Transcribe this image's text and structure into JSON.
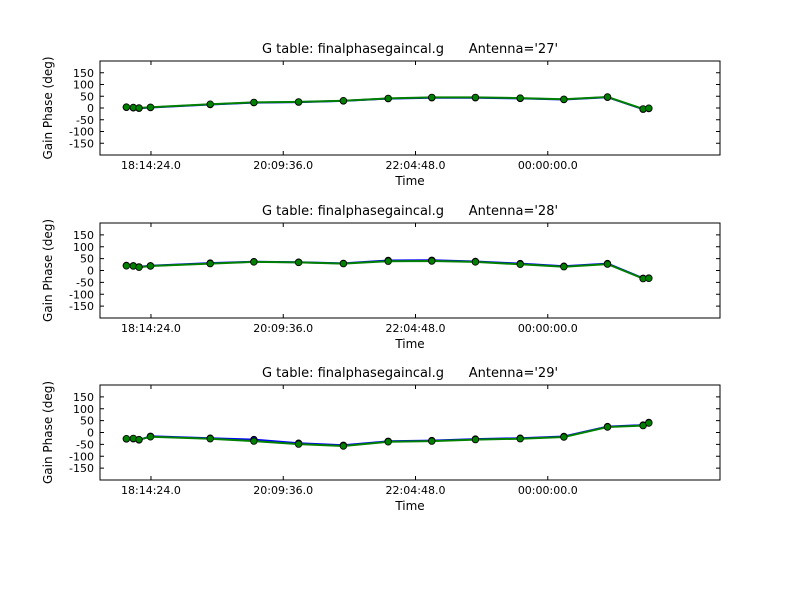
{
  "chart_data": [
    {
      "type": "line",
      "title": "G table: finalphasegaincal.g      Antenna='27'",
      "xlabel": "Time",
      "ylabel": "Gain Phase (deg)",
      "xlim": [
        "17:30:00",
        "02:30:00"
      ],
      "ylim": [
        -200,
        200
      ],
      "yticks": [
        -150,
        -100,
        -50,
        0,
        50,
        100,
        150
      ],
      "xticks": [
        "18:14:24.0",
        "20:09:36.0",
        "22:04:48.0",
        "00:00:00.0"
      ],
      "grid": false,
      "series": [
        {
          "color": "#0000ff",
          "x": [
            "17:53:00",
            "17:59:00",
            "18:04:00",
            "18:14:00",
            "19:06:00",
            "19:44:00",
            "20:23:00",
            "21:02:00",
            "21:41:00",
            "22:19:00",
            "22:57:00",
            "23:36:00",
            "00:14:00",
            "00:52:00",
            "01:23:00",
            "01:28:00"
          ],
          "y": [
            3,
            1,
            -1,
            2,
            15,
            23,
            25,
            30,
            40,
            44,
            44,
            41,
            36,
            46,
            -5,
            -2
          ]
        },
        {
          "color": "#008000",
          "x": [
            "17:53:00",
            "17:59:00",
            "18:04:00",
            "18:14:00",
            "19:06:00",
            "19:44:00",
            "20:23:00",
            "21:02:00",
            "21:41:00",
            "22:19:00",
            "22:57:00",
            "23:36:00",
            "00:14:00",
            "00:52:00",
            "01:23:00",
            "01:28:00"
          ],
          "y": [
            4,
            2,
            0,
            3,
            16,
            24,
            26,
            31,
            41,
            45,
            45,
            42,
            37,
            47,
            -4,
            -1
          ]
        }
      ]
    },
    {
      "type": "line",
      "title": "G table: finalphasegaincal.g      Antenna='28'",
      "xlabel": "Time",
      "ylabel": "Gain Phase (deg)",
      "xlim": [
        "17:30:00",
        "02:30:00"
      ],
      "ylim": [
        -200,
        200
      ],
      "yticks": [
        -150,
        -100,
        -50,
        0,
        50,
        100,
        150
      ],
      "xticks": [
        "18:14:24.0",
        "20:09:36.0",
        "22:04:48.0",
        "00:00:00.0"
      ],
      "grid": false,
      "series": [
        {
          "color": "#0000ff",
          "x": [
            "17:53:00",
            "17:59:00",
            "18:04:00",
            "18:14:00",
            "19:06:00",
            "19:44:00",
            "20:23:00",
            "21:02:00",
            "21:41:00",
            "22:19:00",
            "22:57:00",
            "23:36:00",
            "00:14:00",
            "00:52:00",
            "01:23:00",
            "01:28:00"
          ],
          "y": [
            21,
            20,
            15,
            20,
            31,
            37,
            35,
            30,
            42,
            43,
            38,
            29,
            18,
            29,
            -33,
            -32
          ]
        },
        {
          "color": "#008000",
          "x": [
            "17:53:00",
            "17:59:00",
            "18:04:00",
            "18:14:00",
            "19:06:00",
            "19:44:00",
            "20:23:00",
            "21:02:00",
            "21:41:00",
            "22:19:00",
            "22:57:00",
            "23:36:00",
            "00:14:00",
            "00:52:00",
            "01:23:00",
            "01:28:00"
          ],
          "y": [
            20,
            19,
            14,
            19,
            29,
            36,
            34,
            29,
            39,
            40,
            36,
            26,
            16,
            27,
            -34,
            -33
          ]
        }
      ]
    },
    {
      "type": "line",
      "title": "G table: finalphasegaincal.g      Antenna='29'",
      "xlabel": "Time",
      "ylabel": "Gain Phase (deg)",
      "xlim": [
        "17:30:00",
        "02:30:00"
      ],
      "ylim": [
        -200,
        200
      ],
      "yticks": [
        -150,
        -100,
        -50,
        0,
        50,
        100,
        150
      ],
      "xticks": [
        "18:14:24.0",
        "20:09:36.0",
        "22:04:48.0",
        "00:00:00.0"
      ],
      "grid": false,
      "series": [
        {
          "color": "#0000ff",
          "x": [
            "17:53:00",
            "17:59:00",
            "18:04:00",
            "18:14:00",
            "19:06:00",
            "19:44:00",
            "20:23:00",
            "21:02:00",
            "21:41:00",
            "22:19:00",
            "22:57:00",
            "23:36:00",
            "00:14:00",
            "00:52:00",
            "01:23:00",
            "01:28:00"
          ],
          "y": [
            -27,
            -26,
            -31,
            -16,
            -24,
            -30,
            -45,
            -54,
            -37,
            -34,
            -28,
            -24,
            -17,
            25,
            31,
            42
          ]
        },
        {
          "color": "#008000",
          "x": [
            "17:53:00",
            "17:59:00",
            "18:04:00",
            "18:14:00",
            "19:06:00",
            "19:44:00",
            "20:23:00",
            "21:02:00",
            "21:41:00",
            "22:19:00",
            "22:57:00",
            "23:36:00",
            "00:14:00",
            "00:52:00",
            "01:23:00",
            "01:28:00"
          ],
          "y": [
            -26,
            -25,
            -30,
            -18,
            -26,
            -36,
            -49,
            -57,
            -39,
            -36,
            -30,
            -26,
            -19,
            23,
            29,
            40
          ]
        }
      ]
    }
  ]
}
